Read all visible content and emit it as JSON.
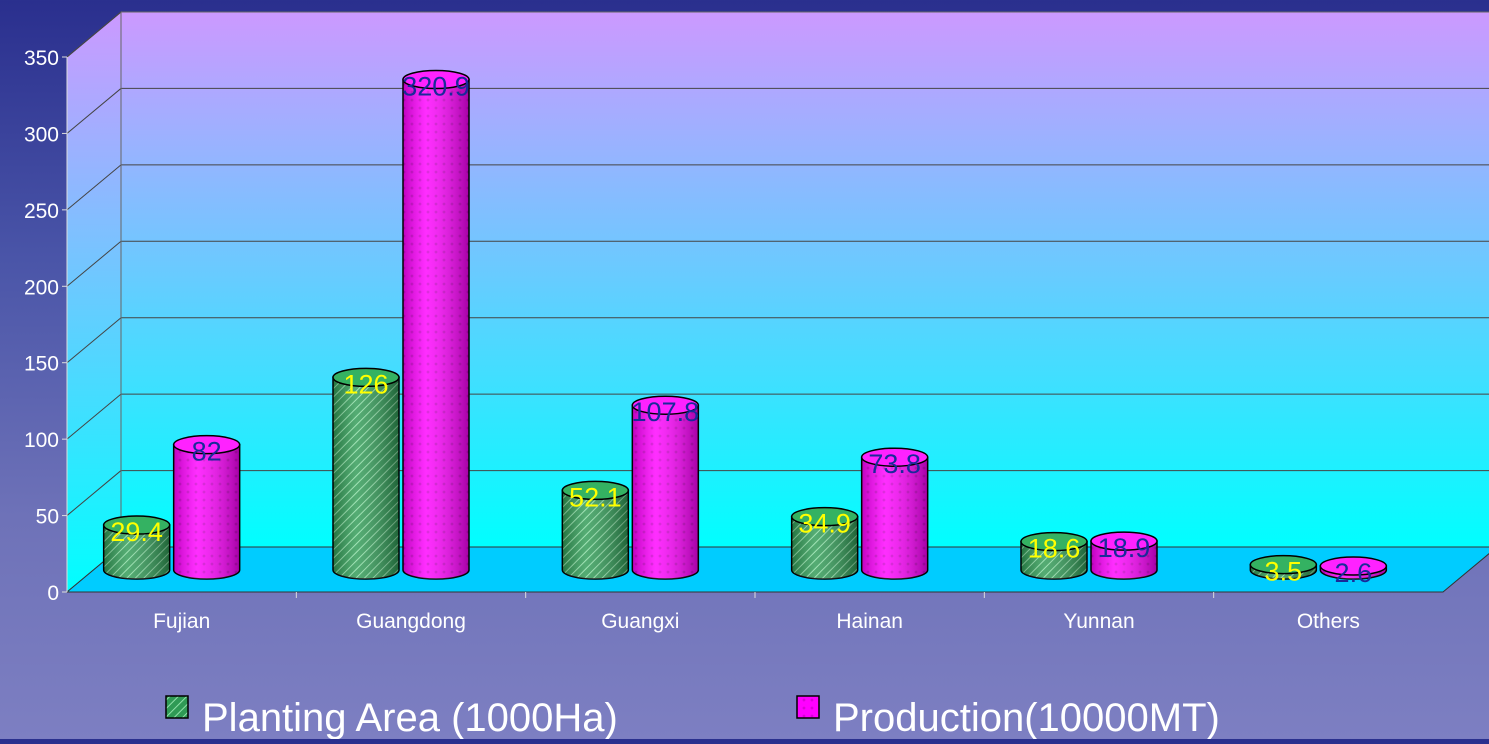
{
  "chart_data": {
    "type": "bar",
    "style": "3d-cylinder",
    "categories": [
      "Fujian",
      "Guangdong",
      "Guangxi",
      "Hainan",
      "Yunnan",
      "Others"
    ],
    "series": [
      {
        "name": "Planting Area (1000Ha)",
        "values": [
          29.4,
          126,
          52.1,
          34.9,
          18.6,
          3.5
        ],
        "labels": [
          "29.4",
          "126",
          "52.1",
          "34.9",
          "18.6",
          "3.5"
        ],
        "color": "#33a35c",
        "label_color": "#ffff00"
      },
      {
        "name": "Production (10000MT)",
        "values": [
          82,
          320.9,
          107.8,
          73.8,
          18.9,
          2.6
        ],
        "labels": [
          "82",
          "320.9",
          "107.8",
          "73.8",
          "18.9",
          "2.6"
        ],
        "color": "#ff00ff",
        "label_color": "#1a2a9a"
      }
    ],
    "yticks": [
      "0",
      "50",
      "100",
      "150",
      "200",
      "250",
      "300",
      "350"
    ],
    "ylim": [
      0,
      350
    ],
    "grid": true,
    "legend_position": "bottom-center",
    "colors": {
      "wall_top": "#cc99ff",
      "wall_bottom": "#00ffff",
      "floor": "#00ccff",
      "axis_text": "#ffffff"
    }
  },
  "legend": {
    "items": [
      {
        "label": "Planting Area (1000Ha)",
        "color": "#33a35c"
      },
      {
        "label": "Production(10000MT)",
        "color": "#ff00ff"
      }
    ]
  }
}
